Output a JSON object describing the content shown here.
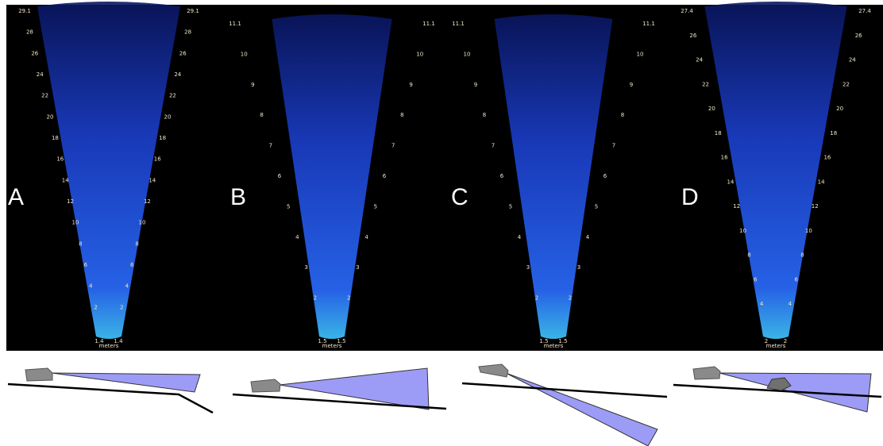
{
  "panels": [
    {
      "label": "A",
      "max_label": "29.1",
      "min_label": "1.4",
      "unit": "meters",
      "ticks": [
        "2",
        "4",
        "6",
        "8",
        "10",
        "12",
        "14",
        "16",
        "18",
        "20",
        "22",
        "24",
        "26",
        "28"
      ]
    },
    {
      "label": "B",
      "max_label": "11.1",
      "min_label": "1.5",
      "unit": "meters",
      "ticks": [
        "2",
        "3",
        "4",
        "5",
        "6",
        "7",
        "8",
        "9",
        "10"
      ]
    },
    {
      "label": "C",
      "max_label": "11.1",
      "min_label": "1.5",
      "unit": "meters",
      "ticks": [
        "2",
        "3",
        "4",
        "5",
        "6",
        "7",
        "8",
        "9",
        "10"
      ]
    },
    {
      "label": "D",
      "max_label": "27.4",
      "min_label": "2",
      "unit": "meters",
      "ticks": [
        "4",
        "6",
        "8",
        "10",
        "12",
        "14",
        "16",
        "18",
        "20",
        "22",
        "24",
        "26"
      ]
    }
  ]
}
